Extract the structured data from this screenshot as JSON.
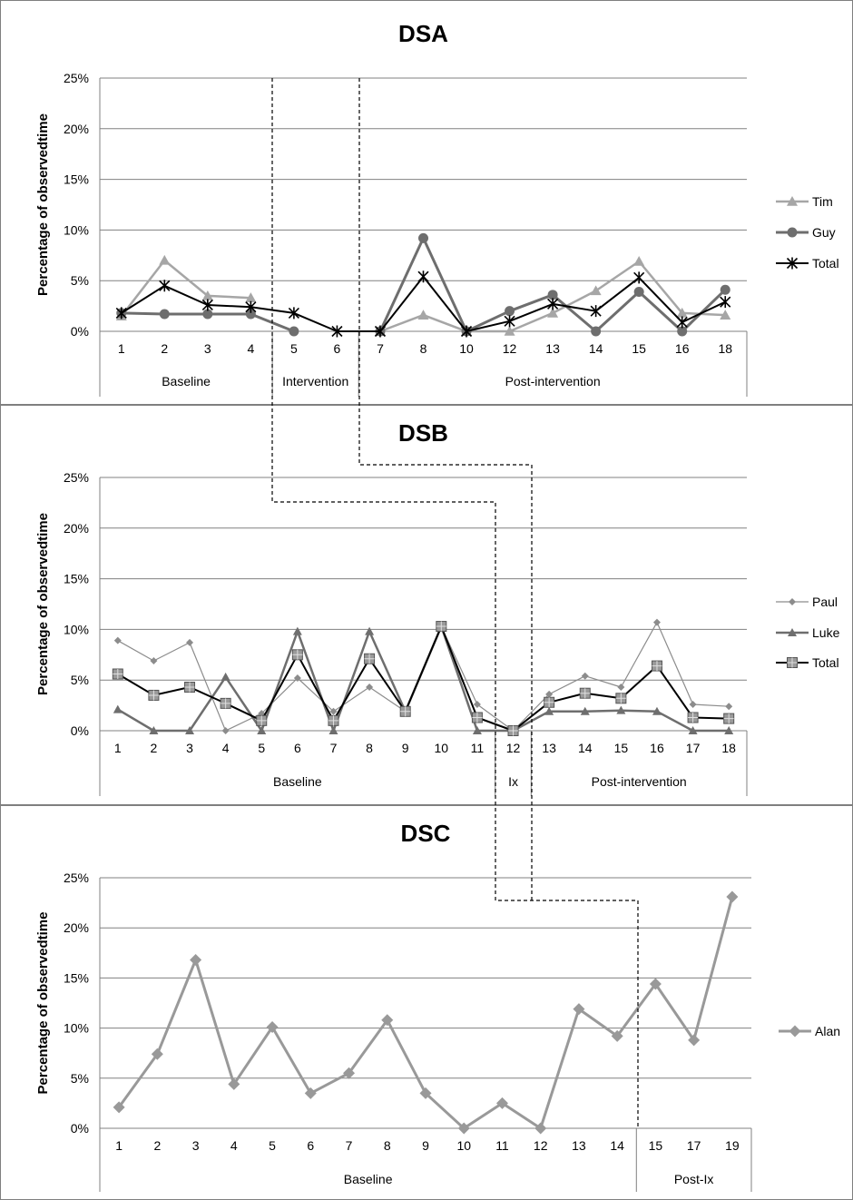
{
  "chart_data": [
    {
      "type": "line",
      "title": "DSA",
      "ylabel": "Percentage of observedtime",
      "ylim": [
        0,
        25
      ],
      "yticks": [
        "0%",
        "5%",
        "10%",
        "15%",
        "20%",
        "25%"
      ],
      "categories": [
        "1",
        "2",
        "3",
        "4",
        "5",
        "6",
        "7",
        "8",
        "10",
        "12",
        "13",
        "14",
        "15",
        "16",
        "18"
      ],
      "phases": [
        {
          "label": "Baseline",
          "from": 1,
          "to": 4
        },
        {
          "label": "Intervention",
          "from": 5,
          "to": 6
        },
        {
          "label": "Post-intervention",
          "from": 7,
          "to": 18
        }
      ],
      "series": [
        {
          "name": "Tim",
          "color": "#a6a6a6",
          "marker": "triangle",
          "values": [
            1.5,
            7.0,
            3.5,
            3.3,
            null,
            null,
            0,
            1.6,
            0,
            0,
            1.8,
            4.0,
            6.9,
            1.8,
            1.6
          ]
        },
        {
          "name": "Guy",
          "color": "#6e6e6e",
          "marker": "circle",
          "values": [
            1.8,
            1.7,
            1.7,
            1.7,
            0,
            null,
            0,
            9.2,
            0,
            2.0,
            3.6,
            0,
            3.9,
            0,
            4.1
          ]
        },
        {
          "name": "Total",
          "color": "#000000",
          "marker": "star",
          "values": [
            1.8,
            4.5,
            2.6,
            2.4,
            1.8,
            0,
            0,
            5.4,
            0,
            1.0,
            2.7,
            2.0,
            5.3,
            0.9,
            2.9
          ]
        }
      ],
      "legend_position": "right"
    },
    {
      "type": "line",
      "title": "DSB",
      "ylabel": "Percentage of observedtime",
      "ylim": [
        0,
        25
      ],
      "yticks": [
        "0%",
        "5%",
        "10%",
        "15%",
        "20%",
        "25%"
      ],
      "categories": [
        "1",
        "2",
        "3",
        "4",
        "5",
        "6",
        "7",
        "8",
        "9",
        "10",
        "11",
        "12",
        "13",
        "14",
        "15",
        "16",
        "17",
        "18"
      ],
      "phases": [
        {
          "label": "Baseline",
          "from": 1,
          "to": 11
        },
        {
          "label": "Ix",
          "from": 12,
          "to": 12
        },
        {
          "label": "Post-intervention",
          "from": 13,
          "to": 18
        }
      ],
      "series": [
        {
          "name": "Paul",
          "color": "#8c8c8c",
          "marker": "diamond-small",
          "values": [
            8.9,
            6.9,
            8.7,
            0,
            1.7,
            5.2,
            1.9,
            4.3,
            1.9,
            10.3,
            2.6,
            0,
            3.6,
            5.4,
            4.3,
            10.7,
            2.6,
            2.4
          ]
        },
        {
          "name": "Luke",
          "color": "#6e6e6e",
          "marker": "triangle-black",
          "values": [
            2.1,
            0,
            0,
            5.3,
            0,
            9.8,
            0,
            9.8,
            1.9,
            10.3,
            0,
            0,
            1.9,
            1.9,
            2.0,
            1.9,
            0,
            0
          ]
        },
        {
          "name": "Total",
          "color": "#000000",
          "marker": "square",
          "values": [
            5.6,
            3.5,
            4.3,
            2.7,
            1.0,
            7.5,
            1.0,
            7.1,
            1.9,
            10.3,
            1.3,
            0,
            2.8,
            3.7,
            3.2,
            6.4,
            1.3,
            1.2
          ]
        }
      ],
      "legend_position": "right"
    },
    {
      "type": "line",
      "title": "DSC",
      "ylabel": "Percentage of observedtime",
      "ylim": [
        0,
        25
      ],
      "yticks": [
        "0%",
        "5%",
        "10%",
        "15%",
        "20%",
        "25%"
      ],
      "categories": [
        "1",
        "2",
        "3",
        "4",
        "5",
        "6",
        "7",
        "8",
        "9",
        "10",
        "11",
        "12",
        "13",
        "14",
        "15",
        "17",
        "19"
      ],
      "phases": [
        {
          "label": "Baseline",
          "from": 1,
          "to": 14
        },
        {
          "label": "Post-Ix",
          "from": 15,
          "to": 19
        }
      ],
      "series": [
        {
          "name": "Alan",
          "color": "#999999",
          "marker": "diamond",
          "values": [
            2.1,
            7.4,
            16.8,
            4.4,
            10.1,
            3.5,
            5.5,
            10.8,
            3.5,
            0,
            2.5,
            0,
            11.9,
            9.2,
            14.4,
            8.8,
            23.1
          ]
        }
      ],
      "legend_position": "right"
    }
  ]
}
